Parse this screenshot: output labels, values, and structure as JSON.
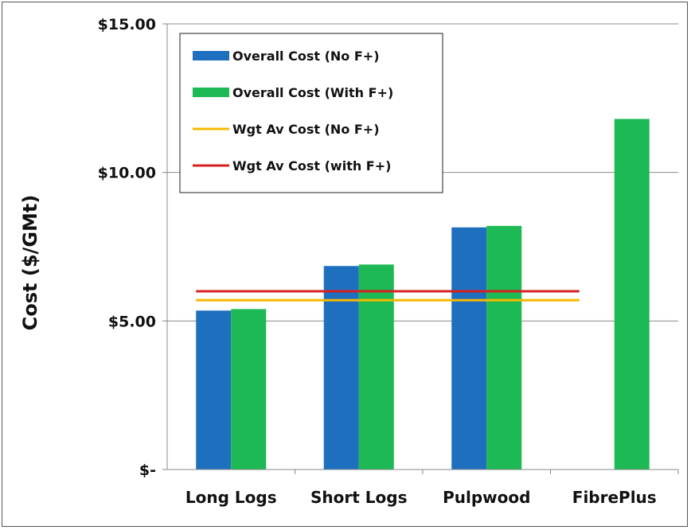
{
  "chart_data": {
    "type": "bar",
    "title": "",
    "xlabel": "",
    "ylabel": "Cost ($/GMt)",
    "categories": [
      "Long Logs",
      "Short Logs",
      "Pulpwood",
      "FibrePlus"
    ],
    "ylim": [
      0,
      15
    ],
    "yticks": [
      {
        "value": 15,
        "label": "$15.00"
      },
      {
        "value": 10,
        "label": "$10.00"
      },
      {
        "value": 5,
        "label": "$5.00"
      },
      {
        "value": 0,
        "label": "$-"
      }
    ],
    "grid": true,
    "legend_position": "top-left",
    "series": [
      {
        "name": "Overall Cost (No F+)",
        "kind": "bar",
        "color": "#1f6fbf",
        "values": [
          5.35,
          6.85,
          8.15,
          null
        ]
      },
      {
        "name": "Overall Cost (With F+)",
        "kind": "bar",
        "color": "#1db954",
        "values": [
          5.4,
          6.9,
          8.2,
          11.8
        ]
      },
      {
        "name": "Wgt Av Cost (No F+)",
        "kind": "line",
        "color": "#f5b800",
        "value": 5.7
      },
      {
        "name": "Wgt Av Cost (with F+)",
        "kind": "line",
        "color": "#d62020",
        "value": 6.0
      }
    ]
  }
}
